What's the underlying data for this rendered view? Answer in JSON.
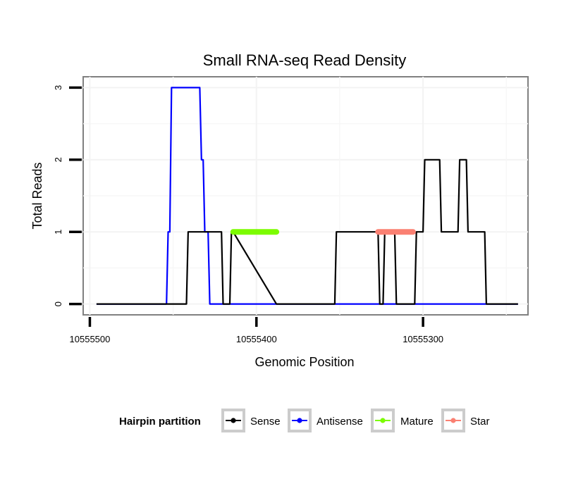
{
  "chart_data": {
    "type": "line",
    "title": "Small RNA-seq Read Density",
    "xlabel": "Genomic Position",
    "ylabel": "Total Reads",
    "x_reversed": true,
    "xlim": [
      10555504,
      10555237
    ],
    "ylim": [
      -0.15,
      3.15
    ],
    "x_ticks": [
      10555500,
      10555400,
      10555300
    ],
    "x_tick_labels": [
      "10555500",
      "10555400",
      "10555300"
    ],
    "y_ticks": [
      0,
      1,
      2,
      3
    ],
    "y_tick_labels": [
      "0",
      "1",
      "2",
      "3"
    ],
    "grid": true,
    "legend": {
      "title": "Hairpin partition",
      "position": "bottom",
      "entries": [
        "Sense",
        "Antisense",
        "Mature",
        "Star"
      ]
    },
    "series": [
      {
        "name": "Sense",
        "color": "#000000",
        "x": [
          10555496,
          10555442,
          10555441,
          10555421,
          10555420,
          10555416,
          10555415,
          10555414,
          10555388,
          10555387,
          10555353,
          10555352,
          10555327,
          10555326,
          10555324,
          10555323,
          10555317,
          10555316,
          10555310,
          10555309,
          10555305,
          10555304,
          10555300,
          10555299,
          10555290,
          10555289,
          10555279,
          10555278,
          10555274,
          10555273,
          10555263,
          10555262,
          10555259,
          10555258,
          10555243
        ],
        "y": [
          0,
          0,
          1,
          1,
          0,
          0,
          1,
          1,
          0,
          0,
          0,
          1,
          1,
          0,
          0,
          1,
          1,
          0,
          0,
          0,
          0,
          1,
          1,
          2,
          2,
          1,
          1,
          2,
          2,
          1,
          1,
          0,
          0,
          0,
          0
        ]
      },
      {
        "name": "Antisense",
        "color": "#0000ff",
        "x": [
          10555496,
          10555454,
          10555453,
          10555452,
          10555451,
          10555434,
          10555433,
          10555432,
          10555431,
          10555429,
          10555428,
          10555243
        ],
        "y": [
          0,
          0,
          1,
          1,
          3,
          3,
          2,
          2,
          1,
          1,
          0,
          0
        ]
      },
      {
        "name": "Mature",
        "color": "#7cfc00",
        "x": [
          10555414,
          10555388
        ],
        "y": [
          1,
          1
        ]
      },
      {
        "name": "Star",
        "color": "#fa8072",
        "x": [
          10555327,
          10555306
        ],
        "y": [
          1,
          1
        ]
      }
    ]
  }
}
